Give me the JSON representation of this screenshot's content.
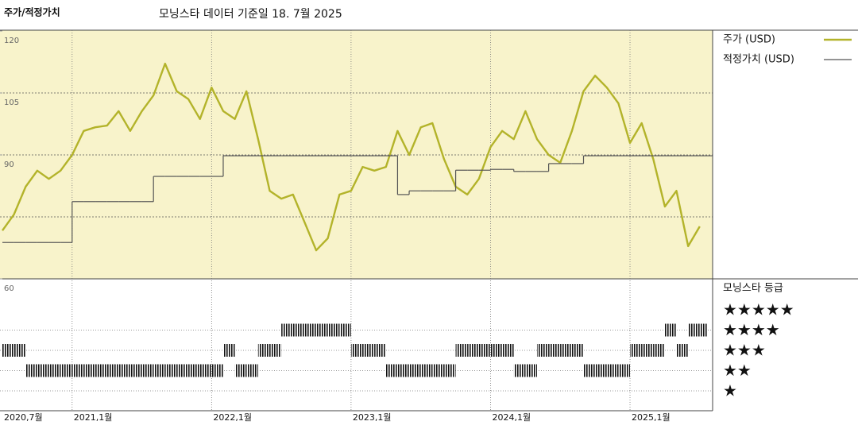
{
  "chart_data": {
    "type": "line",
    "title": "주가/적정가치",
    "subtitle": "모닝스타 데이터 기준일 18. 7월 2025",
    "x": [
      "2020-07",
      "2020-08",
      "2020-09",
      "2020-10",
      "2020-11",
      "2020-12",
      "2021-01",
      "2021-02",
      "2021-03",
      "2021-04",
      "2021-05",
      "2021-06",
      "2021-07",
      "2021-08",
      "2021-09",
      "2021-10",
      "2021-11",
      "2021-12",
      "2022-01",
      "2022-02",
      "2022-03",
      "2022-04",
      "2022-05",
      "2022-06",
      "2022-07",
      "2022-08",
      "2022-09",
      "2022-10",
      "2022-11",
      "2022-12",
      "2023-01",
      "2023-02",
      "2023-03",
      "2023-04",
      "2023-05",
      "2023-06",
      "2023-07",
      "2023-08",
      "2023-09",
      "2023-10",
      "2023-11",
      "2023-12",
      "2024-01",
      "2024-02",
      "2024-03",
      "2024-04",
      "2024-05",
      "2024-06",
      "2024-07",
      "2024-08",
      "2024-09",
      "2024-10",
      "2024-11",
      "2024-12",
      "2025-01",
      "2025-02",
      "2025-03",
      "2025-04",
      "2025-05",
      "2025-06",
      "2025-07"
    ],
    "series": [
      {
        "name": "주가 (USD)",
        "color": "#b3b32a",
        "values": [
          71.7,
          75.6,
          82.3,
          86.2,
          84.2,
          86.2,
          90.0,
          95.8,
          96.7,
          97.1,
          100.6,
          95.8,
          100.6,
          104.4,
          112.1,
          105.4,
          103.5,
          98.7,
          106.3,
          100.6,
          98.7,
          105.4,
          93.8,
          81.3,
          79.4,
          80.4,
          73.7,
          66.9,
          69.8,
          80.4,
          81.3,
          87.1,
          86.2,
          87.1,
          95.8,
          90.0,
          96.7,
          97.7,
          89.0,
          82.3,
          80.4,
          84.2,
          91.9,
          95.8,
          93.8,
          100.6,
          93.8,
          90.0,
          88.1,
          95.8,
          105.4,
          109.2,
          106.3,
          102.5,
          92.9,
          97.7,
          89.0,
          77.5,
          81.3,
          67.9,
          72.7
        ]
      },
      {
        "name": "적정가치 (USD)",
        "color": "#555555",
        "step": true,
        "values": [
          68.8,
          68.8,
          68.8,
          68.8,
          68.8,
          68.8,
          78.7,
          78.7,
          78.7,
          78.7,
          78.7,
          78.7,
          78.7,
          84.8,
          84.8,
          84.8,
          84.8,
          84.8,
          84.8,
          89.8,
          89.8,
          89.8,
          89.8,
          89.8,
          89.8,
          89.8,
          89.8,
          89.8,
          89.8,
          89.8,
          89.8,
          89.8,
          89.8,
          89.8,
          80.4,
          81.3,
          81.3,
          81.3,
          81.3,
          86.3,
          86.3,
          86.3,
          86.5,
          86.5,
          86.0,
          86.0,
          86.0,
          87.9,
          87.9,
          87.9,
          89.8,
          89.8,
          89.8,
          89.8,
          89.8,
          89.8,
          89.8,
          89.8,
          89.8,
          89.8,
          89.8
        ]
      }
    ],
    "ylim": [
      60,
      120
    ],
    "yticks": [
      60,
      90,
      105,
      120
    ],
    "ygrid": [
      75,
      90,
      105
    ],
    "xticks": [
      {
        "value": "2020-07",
        "label": "2020,7월"
      },
      {
        "value": "2021-01",
        "label": "2021,1월"
      },
      {
        "value": "2022-01",
        "label": "2022,1월"
      },
      {
        "value": "2023-01",
        "label": "2023,1월"
      },
      {
        "value": "2024-01",
        "label": "2024,1월"
      },
      {
        "value": "2025-01",
        "label": "2025,1월"
      }
    ],
    "rating": {
      "title": "모닝스타 등급",
      "levels": [
        {
          "value": 5,
          "label": "★★★★★"
        },
        {
          "value": 4,
          "label": "★★★★"
        },
        {
          "value": 3,
          "label": "★★★"
        },
        {
          "value": 2,
          "label": "★★"
        },
        {
          "value": 1,
          "label": "★"
        }
      ],
      "values": [
        3,
        3,
        2,
        2,
        2,
        2,
        2,
        2,
        2,
        2,
        2,
        2,
        2,
        2,
        2,
        2,
        2,
        2,
        2,
        3,
        2,
        2,
        3,
        3,
        4,
        4,
        4,
        4,
        4,
        4,
        3,
        3,
        3,
        2,
        2,
        2,
        2,
        2,
        2,
        3,
        3,
        3,
        3,
        3,
        2,
        2,
        3,
        3,
        3,
        3,
        2,
        2,
        2,
        2,
        3,
        3,
        3,
        4,
        3,
        4,
        4
      ]
    }
  }
}
